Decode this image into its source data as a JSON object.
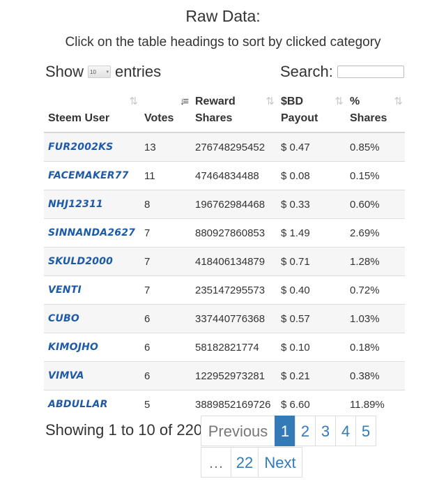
{
  "header": {
    "title": "Raw Data:",
    "subtitle": "Click on the table headings to sort by clicked category"
  },
  "length_control": {
    "show_label": "Show",
    "selected_value": "10",
    "entries_label": "entries"
  },
  "search": {
    "label": "Search:",
    "value": ""
  },
  "table": {
    "columns": [
      {
        "line1": "",
        "line2": "Steem User",
        "sort_icon": "sort-both-icon"
      },
      {
        "line1": "",
        "line2": "Votes",
        "sort_icon": "sort-descending-icon"
      },
      {
        "line1": "Reward",
        "line2": "Shares",
        "sort_icon": "sort-both-icon"
      },
      {
        "line1": "$BD",
        "line2": "Payout",
        "sort_icon": "sort-both-icon"
      },
      {
        "line1": "%",
        "line2": "Shares",
        "sort_icon": "sort-both-icon"
      }
    ],
    "rows": [
      {
        "user": "FUR2002KS",
        "votes": "13",
        "reward_shares": "276748295452",
        "payout": "$ 0.47",
        "pct": "0.85%"
      },
      {
        "user": "FACEMAKER77",
        "votes": "11",
        "reward_shares": "47464834488",
        "payout": "$ 0.08",
        "pct": "0.15%"
      },
      {
        "user": "NHJ12311",
        "votes": "8",
        "reward_shares": "196762984468",
        "payout": "$ 0.33",
        "pct": "0.60%"
      },
      {
        "user": "SINNANDA2627",
        "votes": "7",
        "reward_shares": "880927860853",
        "payout": "$ 1.49",
        "pct": "2.69%"
      },
      {
        "user": "SKULD2000",
        "votes": "7",
        "reward_shares": "418406134879",
        "payout": "$ 0.71",
        "pct": "1.28%"
      },
      {
        "user": "VENTI",
        "votes": "7",
        "reward_shares": "235147295573",
        "payout": "$ 0.40",
        "pct": "0.72%"
      },
      {
        "user": "CUBO",
        "votes": "6",
        "reward_shares": "337440776368",
        "payout": "$ 0.57",
        "pct": "1.03%"
      },
      {
        "user": "KIMOJHO",
        "votes": "6",
        "reward_shares": "58182821774",
        "payout": "$ 0.10",
        "pct": "0.18%"
      },
      {
        "user": "VIMVA",
        "votes": "6",
        "reward_shares": "122952973281",
        "payout": "$ 0.21",
        "pct": "0.38%"
      },
      {
        "user": "ABDULLAR",
        "votes": "5",
        "reward_shares": "3889852169726",
        "payout": "$ 6.60",
        "pct": "11.89%"
      }
    ]
  },
  "footer": {
    "info": "Showing 1 to 10 of 220",
    "pagination": {
      "previous": "Previous",
      "pages": [
        "1",
        "2",
        "3",
        "4",
        "5"
      ],
      "ellipsis": "…",
      "last_page": "22",
      "next": "Next"
    }
  }
}
